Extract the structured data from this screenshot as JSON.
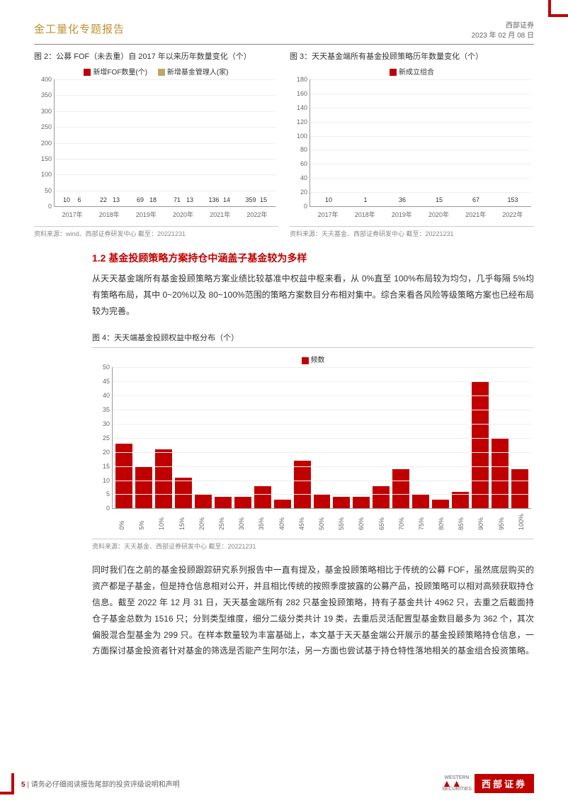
{
  "header": {
    "title_left": "金工量化专题报告",
    "org": "西部证券",
    "date": "2023 年 02 月 08 日"
  },
  "colors": {
    "primary_red": "#c00000",
    "secondary_tan": "#bfa56a",
    "grid": "#eeeeee",
    "axis": "#999999",
    "text_muted": "#888888"
  },
  "chart2": {
    "title": "图 2：公募 FOF（未去重）自 2017 年以来历年数量变化（个）",
    "type": "bar",
    "legend": [
      {
        "label": "新增FOF数量(个)",
        "color": "#c00000"
      },
      {
        "label": "新增基金管理人(家)",
        "color": "#bfa56a"
      }
    ],
    "categories": [
      "2017年",
      "2018年",
      "2019年",
      "2020年",
      "2021年",
      "2022年"
    ],
    "series1": [
      10,
      22,
      69,
      71,
      136,
      359
    ],
    "series2": [
      6,
      13,
      18,
      13,
      14,
      15
    ],
    "ylim": [
      0,
      400
    ],
    "ytick_step": 50,
    "bar_colors": [
      "#c00000",
      "#bfa56a"
    ],
    "source": "资料来源：wind、西部证券研发中心  截至：20221231"
  },
  "chart3": {
    "title": "图 3：天天基金端所有基金投顾策略历年数量变化（个）",
    "type": "bar",
    "legend": [
      {
        "label": "新成立组合",
        "color": "#c00000"
      }
    ],
    "categories": [
      "2017年",
      "2018年",
      "2019年",
      "2020年",
      "2021年",
      "2022年"
    ],
    "values": [
      10,
      1,
      36,
      15,
      67,
      153
    ],
    "ylim": [
      0,
      180
    ],
    "ytick_step": 20,
    "bar_color": "#c00000",
    "source": "资料来源：天天基金、西部证券研发中心  截至：20221231"
  },
  "section12": {
    "heading": "1.2 基金投顾策略方案持仓中涵盖子基金较为多样",
    "para1": "从天天基金端所有基金投顾策略方案业绩比较基准中权益中枢来看，从 0%直至 100%布局较为均匀，几乎每隔 5%均有策略布局，其中 0~20%以及 80~100%范围的策略方案数目分布相对集中。综合来看各风险等级策略方案也已经布局较为完善。"
  },
  "chart4": {
    "title": "图 4：天天端基金投顾权益中枢分布（个）",
    "type": "histogram",
    "legend": [
      {
        "label": "频数",
        "color": "#c00000"
      }
    ],
    "categories": [
      "0%",
      "5%",
      "10%",
      "15%",
      "20%",
      "25%",
      "30%",
      "35%",
      "40%",
      "45%",
      "50%",
      "55%",
      "60%",
      "65%",
      "70%",
      "75%",
      "80%",
      "85%",
      "90%",
      "95%",
      "100%"
    ],
    "values": [
      23,
      15,
      21,
      11,
      5,
      4,
      4,
      8,
      3,
      17,
      5,
      4,
      4,
      8,
      14,
      5,
      3,
      6,
      45,
      25,
      14
    ],
    "ylim": [
      0,
      50
    ],
    "ytick_step": 5,
    "bar_color": "#c00000",
    "source": "资料来源：天天基金、西部证券研发中心  截至：20221231"
  },
  "para2": "同时我们在之前的基金投顾跟踪研究系列报告中一直有提及，基金投顾策略相比于传统的公募 FOF，虽然底层购买的资产都是子基金，但是持仓信息相对公开，并且相比传统的按照季度披露的公募产品，投顾策略可以相对高频获取持仓信息。截至 2022 年 12 月 31 日，天天基金端所有 282 只基金投顾策略，持有子基金共计 4962 只，去重之后截面持仓子基金总数为 1516 只；分到类型维度，细分二级分类共计 19 类，去重后灵活配置型基金数目最多为 362 个，其次偏股混合型基金为 299 只。在样本数量较为丰富基础上，本文基于天天基金端公开展示的基金投顾策略持仓信息，一方面探讨基金投资者针对基金的筛选是否能产生阿尔法，另一方面也尝试基于持仓特性落地相关的基金组合投资策略。",
  "footer": {
    "page": "5",
    "disclaimer": " | 请务必仔细阅读报告尾部的投资评级说明和声明",
    "logo_upper": "WESTERN",
    "logo_lower": "SECURITIES",
    "logo_cn": "西部证券"
  }
}
